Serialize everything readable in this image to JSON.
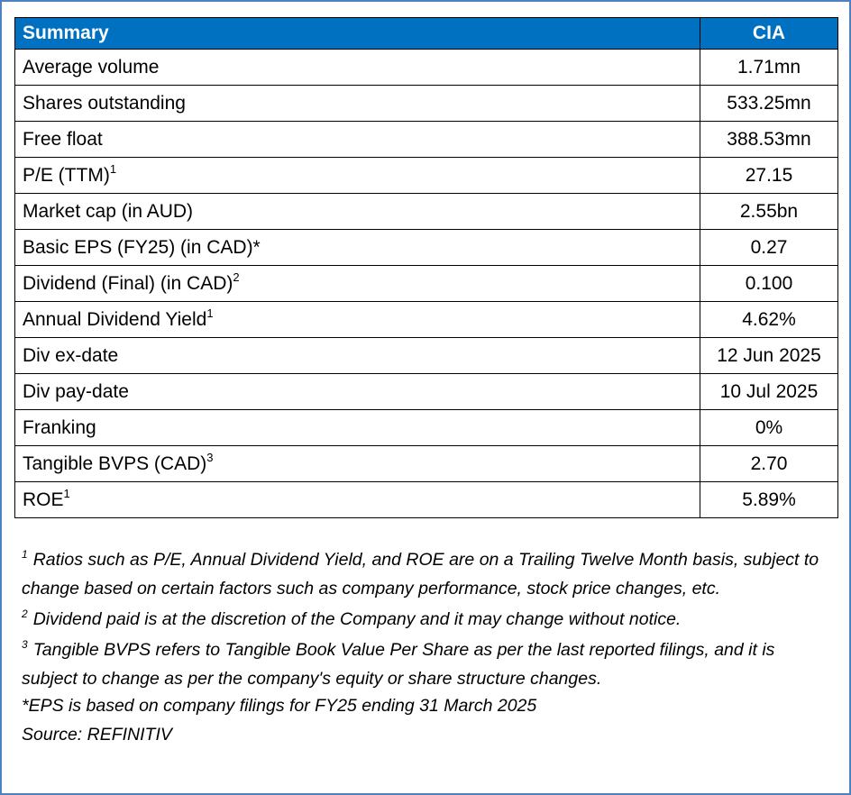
{
  "table": {
    "header": [
      "Summary",
      "CIA"
    ],
    "rows": [
      {
        "label": "Average volume",
        "value": "1.71mn"
      },
      {
        "label": "Shares outstanding",
        "value": "533.25mn"
      },
      {
        "label": "Free float",
        "value": "388.53mn"
      },
      {
        "label": "P/E (TTM)",
        "sup": "1",
        "value": "27.15"
      },
      {
        "label": "Market cap (in AUD)",
        "value": "2.55bn"
      },
      {
        "label": "Basic EPS (FY25) (in CAD)*",
        "value": "0.27"
      },
      {
        "label": "Dividend (Final) (in CAD)",
        "sup": "2",
        "value": "0.100"
      },
      {
        "label": "Annual Dividend Yield",
        "sup": "1",
        "value": "4.62%"
      },
      {
        "label": "Div ex-date",
        "value": "12 Jun 2025"
      },
      {
        "label": "Div pay-date",
        "value": "10 Jul 2025"
      },
      {
        "label": "Franking",
        "value": "0%"
      },
      {
        "label": "Tangible BVPS (CAD)",
        "sup": "3",
        "value": "2.70"
      },
      {
        "label": "ROE",
        "sup": "1",
        "value": "5.89%"
      }
    ]
  },
  "footnotes": [
    {
      "marker": "1",
      "text": "Ratios such as P/E,  Annual Dividend Yield, and ROE are on a Trailing Twelve Month basis, subject to change based on certain factors such as company performance, stock price changes, etc."
    },
    {
      "marker": "2",
      "text": "Dividend paid is at the discretion of the Company and it may change without notice."
    },
    {
      "marker": "3",
      "text": "Tangible BVPS refers to Tangible Book Value Per Share as per the last reported filings, and it is subject to change as per the company's equity or share structure changes."
    }
  ],
  "eps_note": "*EPS is based on company filings for FY25 ending 31 March 2025",
  "source": "Source: REFINITIV"
}
